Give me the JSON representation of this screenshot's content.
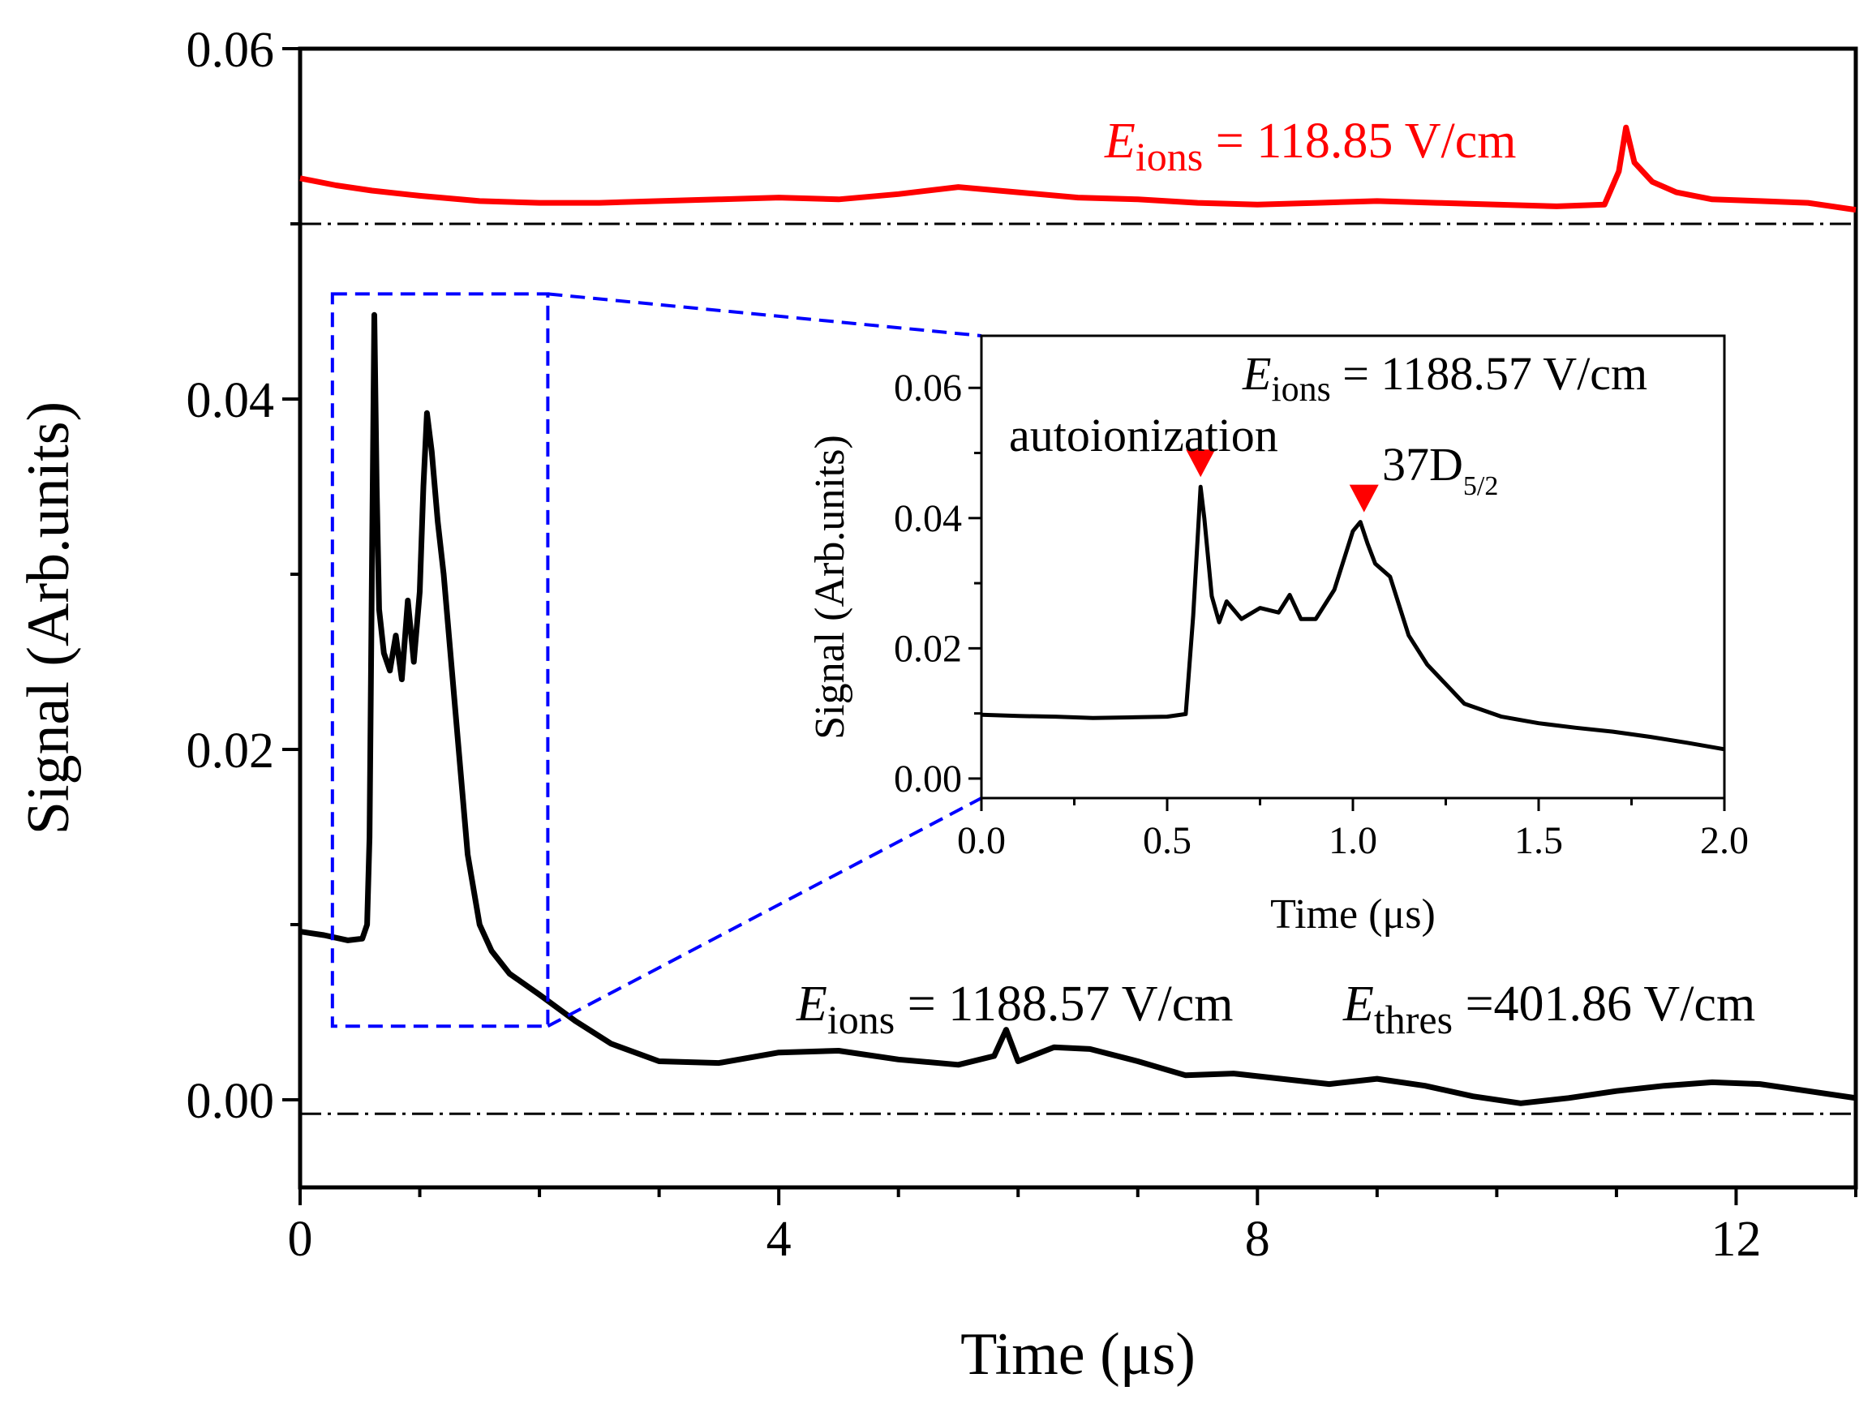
{
  "chart_data": [
    {
      "type": "line",
      "panel": "main",
      "xlabel": "Time (μs)",
      "ylabel": "Signal (Arb.units)",
      "xlim": [
        0,
        13
      ],
      "ylim": [
        -0.005,
        0.06
      ],
      "xticks": [
        0,
        4,
        8,
        12
      ],
      "xtick_labels": [
        "0",
        "4",
        "8",
        "12"
      ],
      "yticks": [
        0.0,
        0.02,
        0.04,
        0.06
      ],
      "ytick_labels": [
        "0.00",
        "0.02",
        "0.04",
        "0.06"
      ],
      "baselines": [
        -0.0008,
        0.05
      ],
      "zoom_box": {
        "x": [
          0.27,
          2.07
        ],
        "y": [
          0.0042,
          0.046
        ]
      },
      "series": [
        {
          "name": "E_ions = 118.85 V/cm",
          "color": "#ff0000",
          "x": [
            0.0,
            0.3,
            0.6,
            1.0,
            1.5,
            2.0,
            2.5,
            3.0,
            3.5,
            4.0,
            4.5,
            5.0,
            5.5,
            6.0,
            6.5,
            7.0,
            7.5,
            8.0,
            8.5,
            9.0,
            9.5,
            10.0,
            10.5,
            10.9,
            11.02,
            11.08,
            11.15,
            11.3,
            11.5,
            11.8,
            12.2,
            12.6,
            13.0
          ],
          "values": [
            0.0526,
            0.0522,
            0.0519,
            0.0516,
            0.0513,
            0.0512,
            0.0512,
            0.0513,
            0.0514,
            0.0515,
            0.0514,
            0.0517,
            0.0521,
            0.0518,
            0.0515,
            0.0514,
            0.0512,
            0.0511,
            0.0512,
            0.0513,
            0.0512,
            0.0511,
            0.051,
            0.0511,
            0.053,
            0.0555,
            0.0535,
            0.0524,
            0.0518,
            0.0514,
            0.0513,
            0.0512,
            0.0508
          ]
        },
        {
          "name": "E_ions = 1188.57 V/cm",
          "color": "#000000",
          "x": [
            0.0,
            0.2,
            0.4,
            0.52,
            0.56,
            0.58,
            0.6,
            0.62,
            0.64,
            0.66,
            0.7,
            0.75,
            0.8,
            0.85,
            0.9,
            0.95,
            1.0,
            1.03,
            1.06,
            1.1,
            1.15,
            1.2,
            1.3,
            1.4,
            1.5,
            1.6,
            1.75,
            2.0,
            2.3,
            2.6,
            3.0,
            3.5,
            4.0,
            4.5,
            5.0,
            5.5,
            5.8,
            5.9,
            6.0,
            6.3,
            6.6,
            7.0,
            7.4,
            7.8,
            8.2,
            8.6,
            9.0,
            9.4,
            9.8,
            10.2,
            10.6,
            11.0,
            11.4,
            11.8,
            12.2,
            12.6,
            13.0
          ],
          "values": [
            0.0096,
            0.0094,
            0.0091,
            0.0092,
            0.01,
            0.015,
            0.03,
            0.0448,
            0.035,
            0.028,
            0.0255,
            0.0245,
            0.0265,
            0.024,
            0.0285,
            0.025,
            0.029,
            0.035,
            0.0392,
            0.037,
            0.033,
            0.03,
            0.022,
            0.014,
            0.01,
            0.0085,
            0.0072,
            0.006,
            0.0045,
            0.0032,
            0.0022,
            0.0021,
            0.0027,
            0.0028,
            0.0023,
            0.002,
            0.0025,
            0.004,
            0.0022,
            0.003,
            0.0029,
            0.0022,
            0.0014,
            0.0015,
            0.0012,
            0.0009,
            0.0012,
            0.0008,
            0.0002,
            -0.0002,
            0.0001,
            0.0005,
            0.0008,
            0.001,
            0.0009,
            0.0005,
            0.0001
          ]
        }
      ],
      "annotations": {
        "red_label": {
          "symbol": "E",
          "sub": "ions",
          "text": " = 118.85 V/cm"
        },
        "black_label": {
          "symbol": "E",
          "sub": "ions",
          "text": " = 1188.57 V/cm"
        },
        "thres_label": {
          "symbol": "E",
          "sub": "thres",
          "text": " =401.86 V/cm"
        }
      }
    },
    {
      "type": "line",
      "panel": "inset",
      "xlabel": "Time (μs)",
      "ylabel": "Signal (Arb.units)",
      "xlim": [
        0,
        2.0
      ],
      "ylim": [
        -0.003,
        0.068
      ],
      "xticks": [
        0.0,
        0.5,
        1.0,
        1.5,
        2.0
      ],
      "xtick_labels": [
        "0.0",
        "0.5",
        "1.0",
        "1.5",
        "2.0"
      ],
      "yticks": [
        0.0,
        0.02,
        0.04,
        0.06
      ],
      "ytick_labels": [
        "0.00",
        "0.02",
        "0.04",
        "0.06"
      ],
      "series": [
        {
          "name": "E_ions = 1188.57 V/cm",
          "color": "#000000",
          "x": [
            0.0,
            0.1,
            0.2,
            0.3,
            0.4,
            0.5,
            0.55,
            0.57,
            0.59,
            0.6,
            0.62,
            0.64,
            0.66,
            0.7,
            0.75,
            0.8,
            0.83,
            0.86,
            0.9,
            0.95,
            1.0,
            1.02,
            1.04,
            1.06,
            1.1,
            1.15,
            1.2,
            1.3,
            1.4,
            1.5,
            1.6,
            1.7,
            1.8,
            1.9,
            2.0
          ],
          "values": [
            0.0098,
            0.0096,
            0.0095,
            0.0093,
            0.0094,
            0.0095,
            0.0099,
            0.025,
            0.0448,
            0.04,
            0.028,
            0.024,
            0.0272,
            0.0245,
            0.0262,
            0.0255,
            0.0282,
            0.0245,
            0.0245,
            0.029,
            0.038,
            0.0394,
            0.036,
            0.033,
            0.031,
            0.022,
            0.0175,
            0.0115,
            0.0095,
            0.0085,
            0.0078,
            0.0072,
            0.0064,
            0.0055,
            0.0045
          ]
        }
      ],
      "annotations": {
        "label": {
          "symbol": "E",
          "sub": "ions",
          "text": " = 1188.57 V/cm"
        },
        "autoionization": "autoionization",
        "state": {
          "text": "37D",
          "sub": "5/2"
        },
        "markers": [
          {
            "x": 0.59,
            "color": "#ff0000"
          },
          {
            "x": 1.03,
            "color": "#ff0000"
          }
        ]
      }
    }
  ]
}
